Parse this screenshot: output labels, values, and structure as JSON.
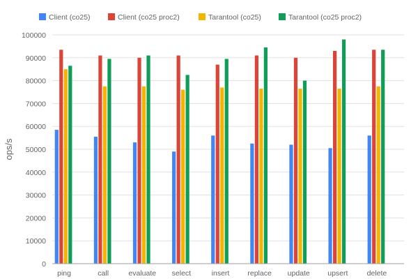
{
  "chart_data": {
    "type": "bar",
    "title": "",
    "xlabel": "",
    "ylabel": "ops/s",
    "ylim": [
      0,
      100000
    ],
    "yticks": [
      0,
      10000,
      20000,
      30000,
      40000,
      50000,
      60000,
      70000,
      80000,
      90000,
      100000
    ],
    "ytick_labels": [
      "0",
      "10000",
      "20000",
      "30000",
      "40000",
      "50000",
      "60000",
      "70000",
      "80000",
      "90000",
      "100000"
    ],
    "grid": true,
    "legend_position": "top-left",
    "categories": [
      "ping",
      "call",
      "evaluate",
      "select",
      "insert",
      "replace",
      "update",
      "upsert",
      "delete"
    ],
    "series": [
      {
        "name": "Client (co25)",
        "color": "#4285f4",
        "values": [
          58500,
          55500,
          53000,
          49000,
          56000,
          52500,
          52000,
          50500,
          56000
        ]
      },
      {
        "name": "Client (co25 proc2)",
        "color": "#db4437",
        "values": [
          93500,
          91000,
          90000,
          91000,
          87000,
          91000,
          90000,
          93000,
          93500
        ]
      },
      {
        "name": "Tarantool (co25)",
        "color": "#f4b400",
        "values": [
          85000,
          77500,
          77500,
          76000,
          77000,
          76500,
          76500,
          76500,
          77500
        ]
      },
      {
        "name": "Tarantool (co25 proc2)",
        "color": "#0f9d58",
        "values": [
          86500,
          89500,
          91000,
          82500,
          89500,
          94500,
          80000,
          98000,
          93500
        ]
      }
    ]
  }
}
